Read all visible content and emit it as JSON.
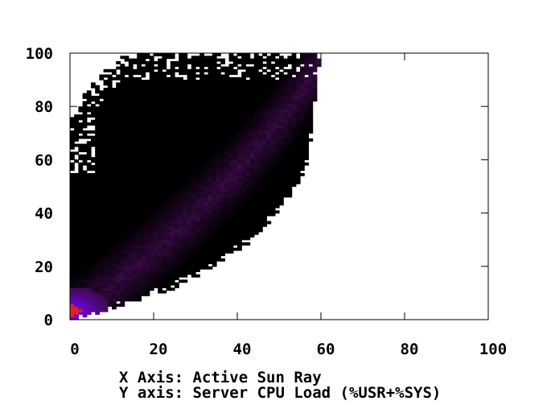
{
  "chart_data": {
    "type": "heatmap",
    "title": "",
    "xlabel": "X Axis: Active Sun Ray",
    "ylabel": "Y axis: Server CPU Load (%USR+%SYS)",
    "xlim": [
      0,
      100
    ],
    "ylim": [
      0,
      100
    ],
    "x_ticks": [
      "0",
      "20",
      "40",
      "60",
      "80",
      "100"
    ],
    "y_ticks": [
      "0",
      "20",
      "40",
      "60",
      "80",
      "100"
    ],
    "grid": false,
    "legend": "none",
    "cell_size": 1,
    "density_model": {
      "description": "approximate density of (active Sun Ray sessions, CPU load) samples",
      "trend_curve_points": [
        [
          0,
          0
        ],
        [
          10,
          12
        ],
        [
          20,
          26
        ],
        [
          30,
          40
        ],
        [
          40,
          56
        ],
        [
          50,
          74
        ],
        [
          58,
          92
        ],
        [
          62,
          100
        ]
      ],
      "upper_boundary_points": [
        [
          0,
          74
        ],
        [
          5,
          86
        ],
        [
          10,
          94
        ],
        [
          14,
          100
        ],
        [
          20,
          100
        ],
        [
          40,
          100
        ],
        [
          50,
          100
        ],
        [
          57,
          100
        ]
      ],
      "lower_boundary_points": [
        [
          0,
          0
        ],
        [
          5,
          1
        ],
        [
          10,
          4
        ],
        [
          15,
          7
        ],
        [
          20,
          10
        ],
        [
          25,
          13
        ],
        [
          30,
          17
        ],
        [
          35,
          21
        ],
        [
          40,
          27
        ],
        [
          45,
          33
        ],
        [
          50,
          42
        ],
        [
          55,
          52
        ],
        [
          57,
          62
        ],
        [
          58,
          76
        ],
        [
          59,
          88
        ],
        [
          60,
          100
        ]
      ],
      "hot_spot": {
        "x": 0,
        "y": 3
      }
    },
    "colors": {
      "low": "#000000",
      "mid": "#3c0b4a",
      "high": "#7b00ff",
      "peak": "#e02020",
      "empty": "#ffffff"
    }
  },
  "captions": {
    "x_axis": "X Axis: Active Sun Ray",
    "y_axis": "Y axis: Server CPU Load (%USR+%SYS)"
  }
}
